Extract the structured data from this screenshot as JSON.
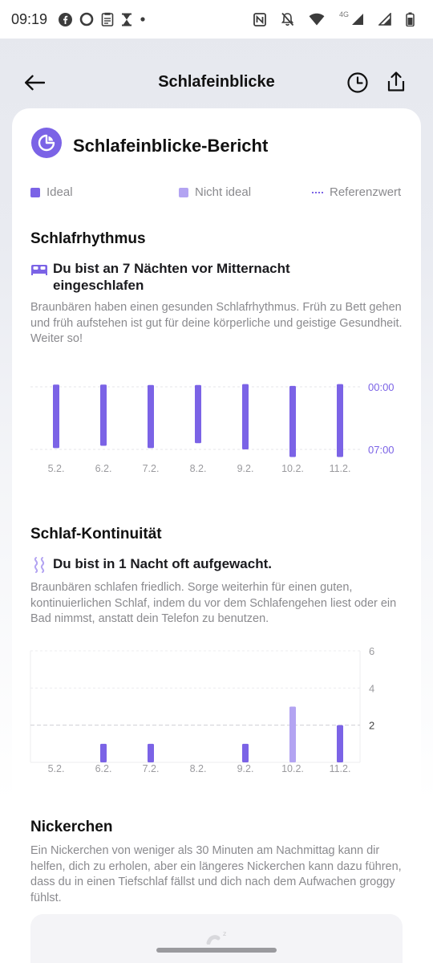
{
  "status_bar": {
    "time": "09:19",
    "network_label": "4G",
    "left_icons": [
      "facebook-icon",
      "circle-app-icon",
      "clipboard-icon",
      "hourglass-icon",
      "dot-icon"
    ],
    "right_icons": [
      "nfc-icon",
      "bell-off-icon",
      "wifi-icon",
      "signal-icon",
      "signal-icon",
      "battery-icon"
    ]
  },
  "header": {
    "title": "Schlafeinblicke",
    "back_icon": "arrow-left-icon",
    "history_icon": "clock-icon",
    "share_icon": "share-icon"
  },
  "report": {
    "title": "Schlafeinblicke-Bericht",
    "icon": "report-pie-icon"
  },
  "legend": {
    "ideal": "Ideal",
    "not_ideal": "Nicht ideal",
    "reference": "Referenzwert"
  },
  "colors": {
    "ideal": "#7b63e6",
    "not_ideal": "#b3a4f2",
    "reference": "#7b63e6"
  },
  "rhythm": {
    "title": "Schlafrhythmus",
    "insight": "Du bist an 7 Nächten vor Mitternacht eingeschlafen",
    "insight_icon": "bed-icon",
    "description": "Braunbären haben einen gesunden Schlafrhythmus. Früh zu Bett gehen und früh aufstehen ist gut für deine körperliche und geistige Gesundheit. Weiter so!"
  },
  "continuity": {
    "title": "Schlaf-Kontinuität",
    "insight": "Du bist in 1 Nacht oft aufgewacht.",
    "insight_icon": "wave-icon",
    "description": "Braunbären schlafen friedlich. Sorge weiterhin für einen guten, kontinuierlichen Schlaf, indem du vor dem Schlafengehen liest oder ein Bad nimmst, anstatt dein Telefon zu benutzen."
  },
  "naps": {
    "title": "Nickerchen",
    "description": "Ein Nickerchen von weniger als 30 Minuten am Nachmittag kann dir helfen, dich zu erholen, aber ein längeres Nickerchen kann dazu führen, dass du in einen Tiefschlaf fällst und dich nach dem Aufwachen groggy fühlst.",
    "sleep_icon": "zzz-icon"
  },
  "chart_data": [
    {
      "type": "bar",
      "variant": "floating-range",
      "categories": [
        "5.2.",
        "6.2.",
        "7.2.",
        "8.2.",
        "9.2.",
        "10.2.",
        "11.2."
      ],
      "y_tick_labels": [
        "00:00",
        "07:00"
      ],
      "series": [
        {
          "start": [
            -0.25,
            -0.25,
            -0.2,
            -0.2,
            -0.3,
            -0.1,
            -0.3
          ],
          "end": [
            6.85,
            6.6,
            6.85,
            6.3,
            7.0,
            7.85,
            7.85
          ],
          "status": [
            "ideal",
            "ideal",
            "ideal",
            "ideal",
            "ideal",
            "ideal",
            "ideal"
          ]
        }
      ],
      "reference_lines": [
        0,
        7
      ],
      "grid": true
    },
    {
      "type": "bar",
      "categories": [
        "5.2.",
        "6.2.",
        "7.2.",
        "8.2.",
        "9.2.",
        "10.2.",
        "11.2."
      ],
      "series": [
        {
          "values": [
            0,
            1,
            1,
            0,
            1,
            3,
            2
          ],
          "status": [
            "ideal",
            "ideal",
            "ideal",
            "ideal",
            "ideal",
            "not_ideal",
            "ideal"
          ]
        }
      ],
      "y_ticks": [
        2,
        4,
        6
      ],
      "ylim": [
        0,
        6
      ],
      "reference_line": 2,
      "grid": true
    }
  ]
}
